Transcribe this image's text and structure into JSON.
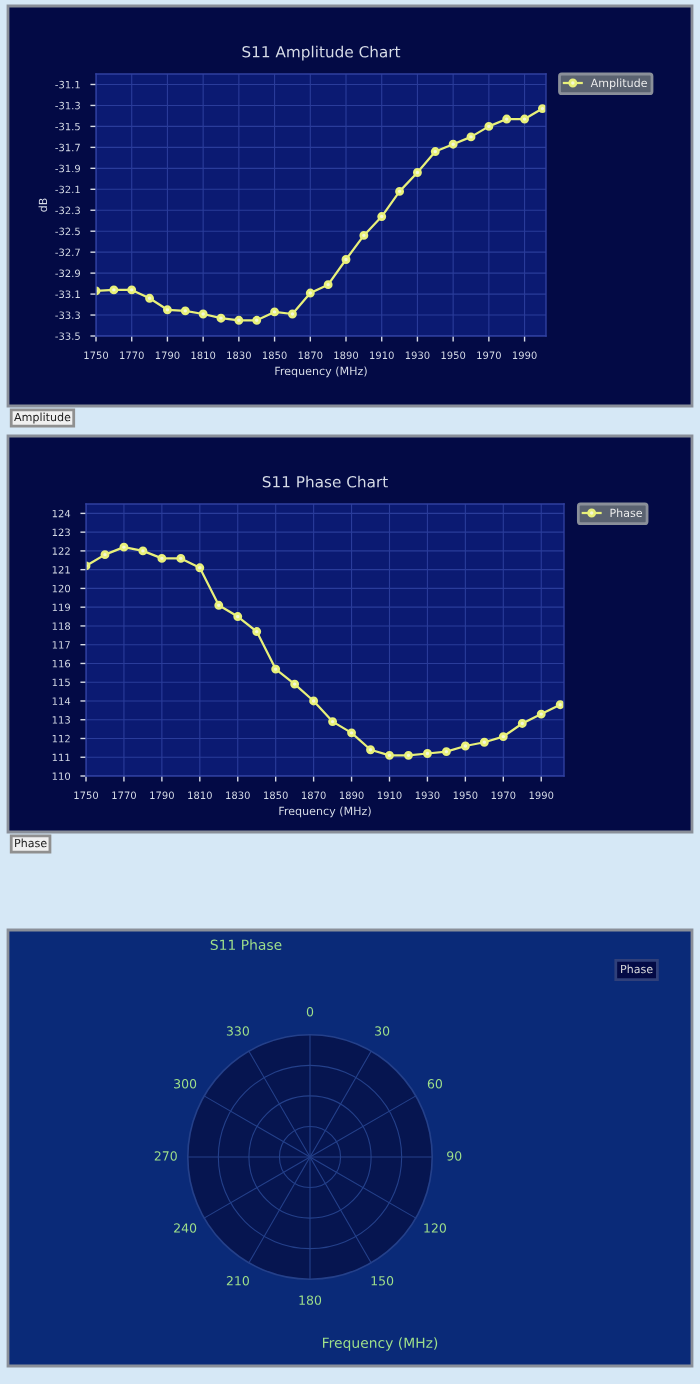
{
  "chart_data": [
    {
      "type": "line",
      "title": "S11 Amplitude Chart",
      "xlabel": "Frequency (MHz)",
      "ylabel": "dB",
      "x": [
        1750,
        1760,
        1770,
        1780,
        1790,
        1800,
        1810,
        1820,
        1830,
        1840,
        1850,
        1860,
        1870,
        1880,
        1890,
        1900,
        1910,
        1920,
        1930,
        1940,
        1950,
        1960,
        1970,
        1980,
        1990,
        2000
      ],
      "series": [
        {
          "name": "Amplitude",
          "color": "#e8f07a",
          "values": [
            -33.07,
            -33.06,
            -33.06,
            -33.14,
            -33.25,
            -33.26,
            -33.29,
            -33.33,
            -33.35,
            -33.35,
            -33.27,
            -33.29,
            -33.09,
            -33.01,
            -32.77,
            -32.54,
            -32.36,
            -32.12,
            -31.94,
            -31.74,
            -31.67,
            -31.6,
            -31.5,
            -31.43,
            -31.43,
            -31.33
          ]
        }
      ],
      "xlim": [
        1750,
        2002
      ],
      "xticks": [
        1750,
        1770,
        1790,
        1810,
        1830,
        1850,
        1870,
        1890,
        1910,
        1930,
        1950,
        1970,
        1990
      ],
      "ylim": [
        -33.5,
        -31.0
      ],
      "yticks": [
        -33.5,
        -33.3,
        -33.1,
        -32.9,
        -32.7,
        -32.5,
        -32.3,
        -32.1,
        -31.9,
        -31.7,
        -31.5,
        -31.3,
        -31.1
      ],
      "grid": true,
      "legend": "top right",
      "marker": "circle",
      "line_style": "solid",
      "annotations": [
        "Amplitude"
      ]
    },
    {
      "type": "line",
      "title": "S11 Phase Chart",
      "xlabel": "Frequency (MHz)",
      "x": [
        1750,
        1760,
        1770,
        1780,
        1790,
        1800,
        1810,
        1820,
        1830,
        1840,
        1850,
        1860,
        1870,
        1880,
        1890,
        1900,
        1910,
        1920,
        1930,
        1940,
        1950,
        1960,
        1970,
        1980,
        1990,
        2000
      ],
      "series": [
        {
          "name": "Phase",
          "color": "#e8f07a",
          "values": [
            121.2,
            121.8,
            122.2,
            122.0,
            121.6,
            121.6,
            121.1,
            119.1,
            118.5,
            117.7,
            115.7,
            114.9,
            114.0,
            112.9,
            112.3,
            111.4,
            111.1,
            111.1,
            111.2,
            111.3,
            111.6,
            111.8,
            112.1,
            112.8,
            113.3,
            113.8
          ]
        }
      ],
      "xlim": [
        1750,
        2002
      ],
      "xticks": [
        1750,
        1770,
        1790,
        1810,
        1830,
        1850,
        1870,
        1890,
        1910,
        1930,
        1950,
        1970,
        1990
      ],
      "ylim": [
        110,
        124.5
      ],
      "yticks": [
        110,
        111,
        112,
        113,
        114,
        115,
        116,
        117,
        118,
        119,
        120,
        121,
        122,
        123,
        124
      ],
      "grid": true,
      "legend": "top right",
      "marker": "circle",
      "line_style": "solid",
      "annotations": [
        "Phase"
      ]
    },
    {
      "type": "other",
      "title": "S11 Phase",
      "xlabel": "Frequency (MHz)",
      "categories": [
        "0",
        "30",
        "60",
        "90",
        "120",
        "150",
        "180",
        "210",
        "240",
        "270",
        "300",
        "330"
      ],
      "annotations": [
        "Phase"
      ]
    }
  ]
}
